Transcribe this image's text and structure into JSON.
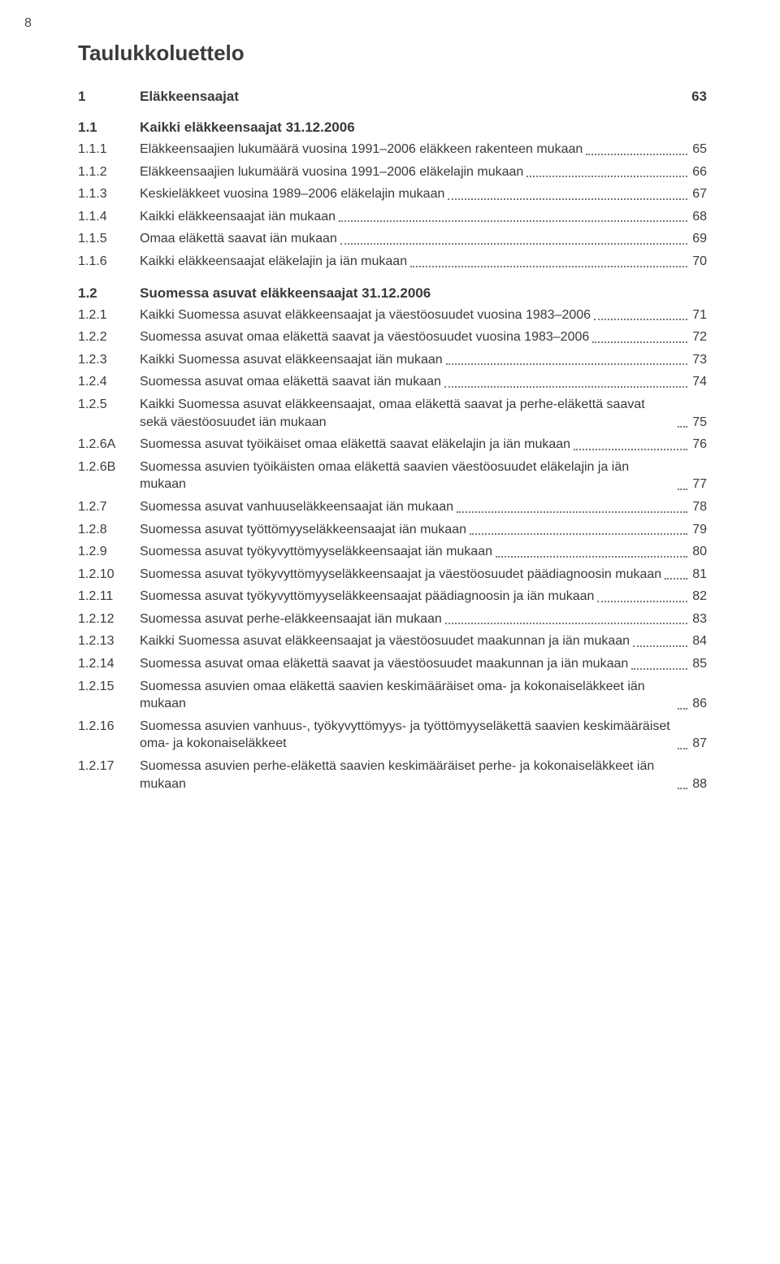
{
  "page_number": "8",
  "title": "Taulukkoluettelo",
  "colors": {
    "text": "#3a3a3a",
    "leader": "#7a7a7a",
    "background": "#ffffff"
  },
  "typography": {
    "title_fontsize_pt": 20,
    "section_fontsize_pt": 13,
    "entry_fontsize_pt": 12,
    "font_family": "Arial"
  },
  "sections": [
    {
      "num": "1",
      "label": "Eläkkeensaajat",
      "page": "63",
      "entries": []
    },
    {
      "num": "1.1",
      "label": "Kaikki eläkkeensaajat 31.12.2006",
      "page": "",
      "entries": [
        {
          "num": "1.1.1",
          "label": "Eläkkeensaajien lukumäärä vuosina 1991–2006 eläkkeen rakenteen mukaan",
          "page": "65"
        },
        {
          "num": "1.1.2",
          "label": "Eläkkeensaajien lukumäärä vuosina 1991–2006 eläkelajin mukaan",
          "page": "66"
        },
        {
          "num": "1.1.3",
          "label": "Keskieläkkeet vuosina 1989–2006 eläkelajin mukaan",
          "page": "67"
        },
        {
          "num": "1.1.4",
          "label": "Kaikki eläkkeensaajat iän mukaan",
          "page": "68"
        },
        {
          "num": "1.1.5",
          "label": "Omaa eläkettä saavat iän mukaan",
          "page": "69"
        },
        {
          "num": "1.1.6",
          "label": "Kaikki eläkkeensaajat eläkelajin ja iän mukaan",
          "page": "70"
        }
      ]
    },
    {
      "num": "1.2",
      "label": "Suomessa asuvat eläkkeensaajat 31.12.2006",
      "page": "",
      "entries": [
        {
          "num": "1.2.1",
          "label": "Kaikki Suomessa asuvat eläkkeensaajat ja väestöosuudet vuosina 1983–2006",
          "page": "71"
        },
        {
          "num": "1.2.2",
          "label": "Suomessa asuvat omaa eläkettä saavat ja väestöosuudet vuosina 1983–2006",
          "page": "72"
        },
        {
          "num": "1.2.3",
          "label": "Kaikki Suomessa asuvat eläkkeensaajat iän mukaan",
          "page": "73"
        },
        {
          "num": "1.2.4",
          "label": "Suomessa asuvat omaa eläkettä saavat iän mukaan",
          "page": "74"
        },
        {
          "num": "1.2.5",
          "label": "Kaikki Suomessa asuvat eläkkeensaajat, omaa eläkettä saavat ja perhe-eläkettä saavat sekä väestöosuudet iän mukaan",
          "page": "75"
        },
        {
          "num": "1.2.6A",
          "label": "Suomessa asuvat työikäiset omaa eläkettä saavat eläkelajin ja iän mukaan",
          "page": "76"
        },
        {
          "num": "1.2.6B",
          "label": "Suomessa asuvien työikäisten omaa eläkettä saavien väestöosuudet eläkelajin ja iän mukaan",
          "page": "77"
        },
        {
          "num": "1.2.7",
          "label": "Suomessa asuvat vanhuuseläkkeensaajat iän mukaan",
          "page": "78"
        },
        {
          "num": "1.2.8",
          "label": "Suomessa asuvat työttömyyseläkkeensaajat iän mukaan",
          "page": "79"
        },
        {
          "num": "1.2.9",
          "label": "Suomessa asuvat työkyvyttömyyseläkkeensaajat iän mukaan",
          "page": "80"
        },
        {
          "num": "1.2.10",
          "label": "Suomessa asuvat työkyvyttömyyseläkkeensaajat ja väestöosuudet päädiagnoosin mukaan",
          "page": "81"
        },
        {
          "num": "1.2.11",
          "label": "Suomessa asuvat työkyvyttömyyseläkkeensaajat päädiagnoosin ja iän mukaan",
          "page": "82"
        },
        {
          "num": "1.2.12",
          "label": "Suomessa asuvat perhe-eläkkeensaajat iän mukaan",
          "page": "83"
        },
        {
          "num": "1.2.13",
          "label": "Kaikki Suomessa asuvat eläkkeensaajat ja väestöosuudet maakunnan ja iän mukaan",
          "page": "84"
        },
        {
          "num": "1.2.14",
          "label": "Suomessa asuvat omaa eläkettä saavat ja väestöosuudet maakunnan ja iän mukaan",
          "page": "85"
        },
        {
          "num": "1.2.15",
          "label": "Suomessa asuvien omaa eläkettä saavien keskimääräiset oma- ja kokonaiseläkkeet iän mukaan",
          "page": "86"
        },
        {
          "num": "1.2.16",
          "label": "Suomessa asuvien vanhuus-, työkyvyttömyys- ja työttömyyseläkettä saavien keskimääräiset oma- ja kokonaiseläkkeet",
          "page": "87"
        },
        {
          "num": "1.2.17",
          "label": "Suomessa asuvien perhe-eläkettä saavien keskimääräiset perhe- ja kokonaiseläkkeet iän mukaan",
          "page": "88"
        }
      ]
    }
  ]
}
